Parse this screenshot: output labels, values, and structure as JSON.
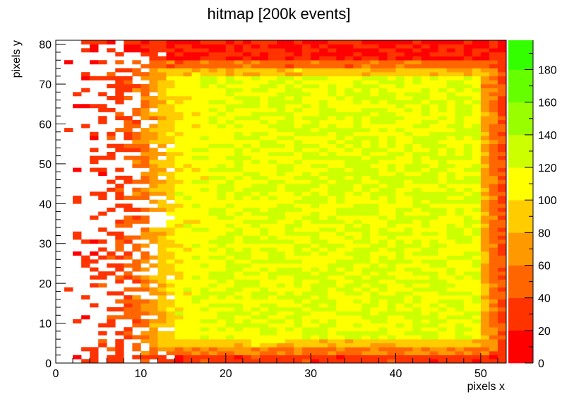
{
  "chart_data": {
    "type": "heatmap",
    "title": "hitmap [200k events]",
    "xlabel": "pixels x",
    "ylabel": "pixels y",
    "xlim": [
      0,
      53
    ],
    "ylim": [
      0,
      81
    ],
    "x_bins": 53,
    "y_bins": 81,
    "x_ticks": [
      0,
      10,
      20,
      30,
      40,
      50
    ],
    "y_ticks": [
      0,
      10,
      20,
      30,
      40,
      50,
      60,
      70,
      80
    ],
    "x_tick_labels": [
      "0",
      "10",
      "20",
      "30",
      "40",
      "50"
    ],
    "y_tick_labels": [
      "0",
      "10",
      "20",
      "30",
      "40",
      "50",
      "60",
      "70",
      "80"
    ],
    "colorbar": {
      "range": [
        0,
        198
      ],
      "levels": [
        0,
        20,
        40,
        60,
        80,
        100,
        120,
        140,
        160,
        180,
        198
      ],
      "tick_values": [
        0,
        20,
        40,
        60,
        80,
        100,
        120,
        140,
        160,
        180
      ],
      "tick_labels": [
        "0",
        "20",
        "40",
        "60",
        "80",
        "100",
        "120",
        "140",
        "160",
        "180"
      ],
      "colors": [
        "#ff0000",
        "#ff3300",
        "#ff6600",
        "#ff9900",
        "#ffcc00",
        "#ffff00",
        "#ccff00",
        "#99ff00",
        "#66ff00",
        "#33ff00"
      ]
    },
    "grid": false,
    "legend": "colorbar-right",
    "data_summary": {
      "plateau_value": 120,
      "plateau_region_x": [
        22,
        49
      ],
      "plateau_region_y": [
        8,
        72
      ],
      "left_edge_falloff_x": [
        0,
        15
      ],
      "top_hot_band_y": [
        74,
        80
      ],
      "right_edge_low_x": [
        50,
        53
      ],
      "bottom_low_band_y": [
        0,
        5
      ]
    }
  }
}
